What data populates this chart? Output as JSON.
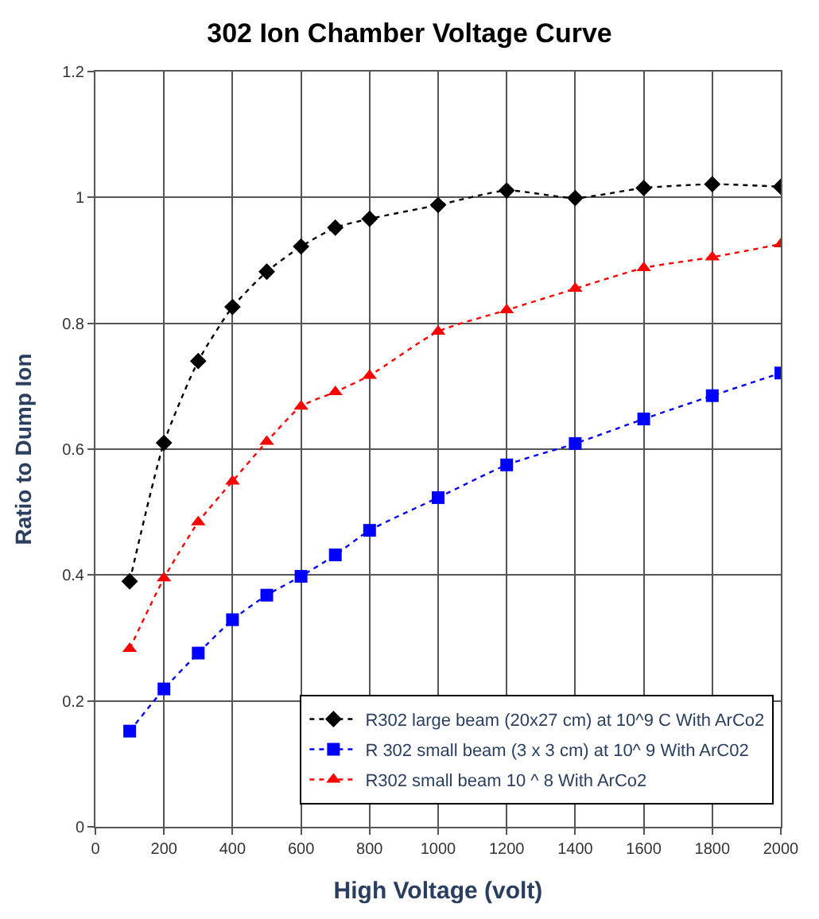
{
  "chart_data": {
    "type": "line",
    "title": "302 Ion Chamber Voltage Curve",
    "xlabel": "High Voltage (volt)",
    "ylabel": "Ratio to Dump Ion",
    "x": [
      100,
      200,
      300,
      400,
      500,
      600,
      700,
      800,
      1000,
      1200,
      1400,
      1600,
      1800,
      2000
    ],
    "series": [
      {
        "name": "R302 large beam (20x27 cm) at 10^9 C With ArCo2",
        "color": "#000000",
        "marker": "diamond",
        "values": [
          0.39,
          0.61,
          0.74,
          0.826,
          0.882,
          0.922,
          0.952,
          0.966,
          0.988,
          1.011,
          0.999,
          1.015,
          1.021,
          1.017
        ]
      },
      {
        "name": "R 302 small beam (3 x 3 cm) at 10^ 9 With ArC02",
        "color": "#0000ff",
        "marker": "square",
        "values": [
          0.152,
          0.219,
          0.276,
          0.329,
          0.368,
          0.398,
          0.432,
          0.471,
          0.523,
          0.575,
          0.609,
          0.648,
          0.685,
          0.721
        ]
      },
      {
        "name": "R302 small beam 10 ^ 8 With ArCo2",
        "color": "#ff0000",
        "marker": "triangle",
        "values": [
          0.283,
          0.395,
          0.484,
          0.549,
          0.612,
          0.668,
          0.691,
          0.717,
          0.787,
          0.821,
          0.855,
          0.888,
          0.905,
          0.926
        ]
      }
    ],
    "xlim": [
      0,
      2000
    ],
    "xticks": [
      0,
      200,
      400,
      600,
      800,
      1000,
      1200,
      1400,
      1600,
      1800,
      2000
    ],
    "ylim": [
      0,
      1.2
    ],
    "yticks": [
      0,
      0.2,
      0.4,
      0.6,
      0.8,
      1,
      1.2
    ],
    "grid": true,
    "legend": "bottom right",
    "line_style": "dotted"
  }
}
